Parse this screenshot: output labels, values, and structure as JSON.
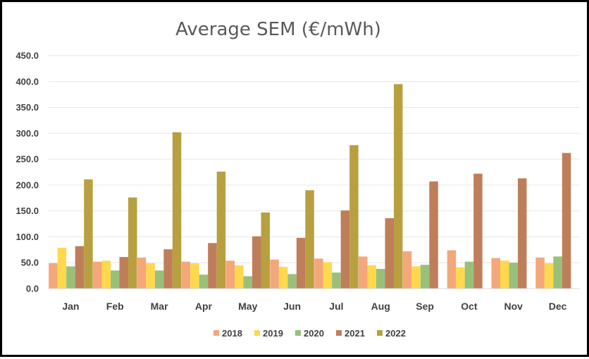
{
  "chart_data": {
    "type": "bar",
    "title": "Average SEM (€/mWh)",
    "xlabel": "",
    "ylabel": "",
    "ylim": [
      0,
      450
    ],
    "yticks": [
      "0.0",
      "50.0",
      "100.0",
      "150.0",
      "200.0",
      "250.0",
      "300.0",
      "350.0",
      "400.0",
      "450.0"
    ],
    "grid": true,
    "legend_position": "bottom",
    "categories": [
      "Jan",
      "Feb",
      "Mar",
      "Apr",
      "May",
      "Jun",
      "Jul",
      "Aug",
      "Sep",
      "Oct",
      "Nov",
      "Dec"
    ],
    "series": [
      {
        "name": "2018",
        "color": "#F4A77A",
        "values": [
          49,
          52,
          60,
          52,
          54,
          56,
          58,
          62,
          72,
          74,
          59,
          60
        ]
      },
      {
        "name": "2019",
        "color": "#FFD84D",
        "values": [
          79,
          54,
          49,
          49,
          45,
          42,
          51,
          45,
          43,
          41,
          54,
          49
        ]
      },
      {
        "name": "2020",
        "color": "#99C07A",
        "values": [
          43,
          35,
          35,
          27,
          24,
          28,
          31,
          38,
          46,
          52,
          50,
          62
        ]
      },
      {
        "name": "2021",
        "color": "#BF7E5A",
        "values": [
          82,
          61,
          76,
          88,
          101,
          98,
          151,
          136,
          207,
          222,
          213,
          262
        ]
      },
      {
        "name": "2022",
        "color": "#B8A040",
        "values": [
          211,
          176,
          302,
          226,
          147,
          190,
          277,
          395,
          null,
          null,
          null,
          null
        ]
      }
    ]
  }
}
